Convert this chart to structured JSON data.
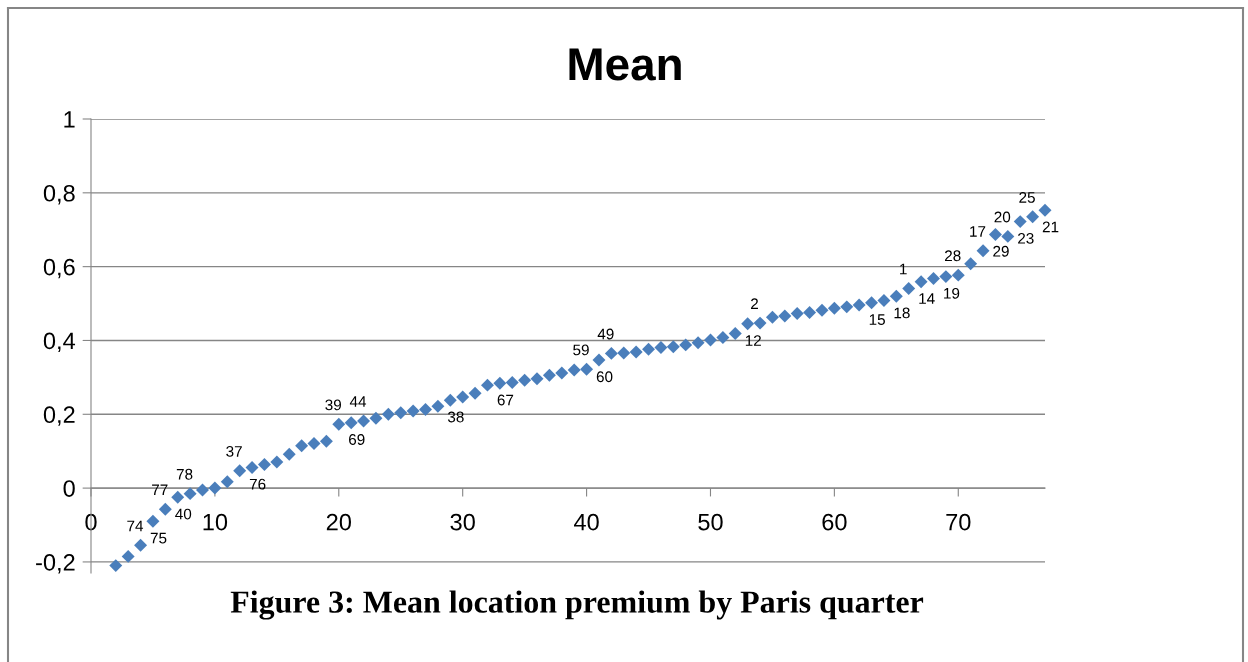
{
  "chart_data": {
    "type": "scatter",
    "title": "Mean",
    "x": [
      2,
      3,
      4,
      5,
      6,
      7,
      8,
      9,
      10,
      11,
      12,
      13,
      14,
      15,
      16,
      17,
      18,
      19,
      20,
      21,
      22,
      23,
      24,
      25,
      26,
      27,
      28,
      29,
      30,
      31,
      32,
      33,
      34,
      35,
      36,
      37,
      38,
      39,
      40,
      41,
      42,
      43,
      44,
      45,
      46,
      47,
      48,
      49,
      50,
      51,
      52,
      53,
      54,
      55,
      56,
      57,
      58,
      59,
      60,
      61,
      62,
      63,
      64,
      65,
      66,
      67,
      68,
      69,
      70,
      71,
      72,
      73,
      74,
      75,
      76,
      77
    ],
    "values": [
      -0.21,
      -0.185,
      -0.155,
      -0.09,
      -0.057,
      -0.025,
      -0.015,
      -0.005,
      0.0,
      0.017,
      0.047,
      0.056,
      0.064,
      0.071,
      0.092,
      0.115,
      0.121,
      0.127,
      0.173,
      0.177,
      0.182,
      0.189,
      0.2,
      0.204,
      0.209,
      0.213,
      0.222,
      0.238,
      0.247,
      0.257,
      0.279,
      0.284,
      0.286,
      0.292,
      0.296,
      0.306,
      0.312,
      0.32,
      0.322,
      0.347,
      0.365,
      0.366,
      0.369,
      0.376,
      0.381,
      0.383,
      0.388,
      0.394,
      0.401,
      0.408,
      0.419,
      0.445,
      0.447,
      0.463,
      0.466,
      0.473,
      0.476,
      0.482,
      0.487,
      0.491,
      0.496,
      0.502,
      0.508,
      0.52,
      0.541,
      0.559,
      0.568,
      0.573,
      0.577,
      0.608,
      0.643,
      0.687,
      0.682,
      0.722,
      0.735,
      0.753
    ],
    "color": "#4a7ebb",
    "marker": "diamond",
    "xlim": [
      0,
      77
    ],
    "ylim": [
      -0.23,
      1
    ],
    "xticks": [
      0,
      10,
      20,
      30,
      40,
      50,
      60,
      70
    ],
    "yticks": [
      {
        "value": -0.2,
        "label": "-0,2"
      },
      0,
      {
        "value": 0.2,
        "label": "0,2"
      },
      {
        "value": 0.4,
        "label": "0,4"
      },
      {
        "value": 0.6,
        "label": "0,6"
      },
      {
        "value": 0.8,
        "label": "0,8"
      },
      1
    ],
    "grid": "y",
    "annotations": [
      "Figure 3: Mean location premium by Paris quarter",
      {
        "text": "74",
        "x": 4,
        "y": -0.155
      },
      {
        "text": "75",
        "x": 5,
        "y": -0.09
      },
      {
        "text": "77",
        "x": 6,
        "y": -0.057
      },
      {
        "text": "40",
        "x": 7,
        "y": -0.025
      },
      {
        "text": "78",
        "x": 8,
        "y": -0.015
      },
      {
        "text": "37",
        "x": 12,
        "y": 0.047
      },
      {
        "text": "76",
        "x": 13,
        "y": 0.056
      },
      {
        "text": "39",
        "x": 20,
        "y": 0.173
      },
      {
        "text": "69",
        "x": 21,
        "y": 0.177
      },
      {
        "text": "44",
        "x": 22,
        "y": 0.182
      },
      {
        "text": "38",
        "x": 29,
        "y": 0.238
      },
      {
        "text": "67",
        "x": 33,
        "y": 0.284
      },
      {
        "text": "59",
        "x": 40,
        "y": 0.322
      },
      {
        "text": "60",
        "x": 41,
        "y": 0.347
      },
      {
        "text": "49",
        "x": 42,
        "y": 0.365
      },
      {
        "text": "12",
        "x": 53,
        "y": 0.445
      },
      {
        "text": "2",
        "x": 54,
        "y": 0.447
      },
      {
        "text": "15",
        "x": 63,
        "y": 0.502
      },
      {
        "text": "18",
        "x": 65,
        "y": 0.52
      },
      {
        "text": "1",
        "x": 66,
        "y": 0.541
      },
      {
        "text": "14",
        "x": 67,
        "y": 0.559
      },
      {
        "text": "19",
        "x": 69,
        "y": 0.573
      },
      {
        "text": "28",
        "x": 70,
        "y": 0.577
      },
      {
        "text": "17",
        "x": 72,
        "y": 0.643
      },
      {
        "text": "29",
        "x": 73,
        "y": 0.687
      },
      {
        "text": "20",
        "x": 74,
        "y": 0.682
      },
      {
        "text": "23",
        "x": 75,
        "y": 0.722
      },
      {
        "text": "25",
        "x": 76,
        "y": 0.735
      },
      {
        "text": "21",
        "x": 77,
        "y": 0.753
      }
    ]
  }
}
